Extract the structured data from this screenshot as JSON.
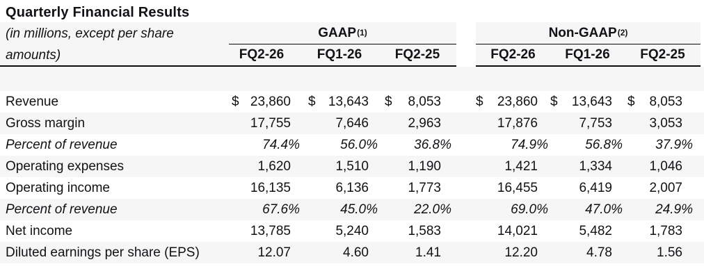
{
  "page": {
    "title": "Quarterly Financial Results",
    "subtitle_line1": "(in millions, except per share",
    "subtitle_line2": "amounts)"
  },
  "table": {
    "currency_symbol": "$",
    "groups": [
      {
        "name": "GAAP",
        "superscript": "(1)",
        "columns": [
          "FQ2-26",
          "FQ1-26",
          "FQ2-25"
        ]
      },
      {
        "name": "Non-GAAP",
        "superscript": "(2)",
        "columns": [
          "FQ2-26",
          "FQ1-26",
          "FQ2-25"
        ]
      }
    ],
    "rows": [
      {
        "label": "Revenue",
        "type": "currency",
        "gaap": [
          "23,860",
          "13,643",
          "8,053"
        ],
        "non_gaap": [
          "23,860",
          "13,643",
          "8,053"
        ]
      },
      {
        "label": "Gross margin",
        "type": "number",
        "gaap": [
          "17,755",
          "7,646",
          "2,963"
        ],
        "non_gaap": [
          "17,876",
          "7,753",
          "3,053"
        ]
      },
      {
        "label": "Percent of revenue",
        "type": "percent",
        "gaap": [
          "74.4%",
          "56.0%",
          "36.8%"
        ],
        "non_gaap": [
          "74.9%",
          "56.8%",
          "37.9%"
        ]
      },
      {
        "label": "Operating expenses",
        "type": "number",
        "gaap": [
          "1,620",
          "1,510",
          "1,190"
        ],
        "non_gaap": [
          "1,421",
          "1,334",
          "1,046"
        ]
      },
      {
        "label": "Operating income",
        "type": "number",
        "gaap": [
          "16,135",
          "6,136",
          "1,773"
        ],
        "non_gaap": [
          "16,455",
          "6,419",
          "2,007"
        ]
      },
      {
        "label": "Percent of revenue",
        "type": "percent",
        "gaap": [
          "67.6%",
          "45.0%",
          "22.0%"
        ],
        "non_gaap": [
          "69.0%",
          "47.0%",
          "24.9%"
        ]
      },
      {
        "label": "Net income",
        "type": "number",
        "gaap": [
          "13,785",
          "5,240",
          "1,583"
        ],
        "non_gaap": [
          "14,021",
          "5,482",
          "1,783"
        ]
      },
      {
        "label": "Diluted earnings per share (EPS)",
        "type": "number",
        "gaap": [
          "12.07",
          "4.60",
          "1.41"
        ],
        "non_gaap": [
          "12.20",
          "4.78",
          "1.56"
        ]
      }
    ]
  },
  "colors": {
    "background": "#ffffff",
    "text": "#121216",
    "stripe": "#f6f6f7",
    "rule": "#0c0c0e"
  }
}
